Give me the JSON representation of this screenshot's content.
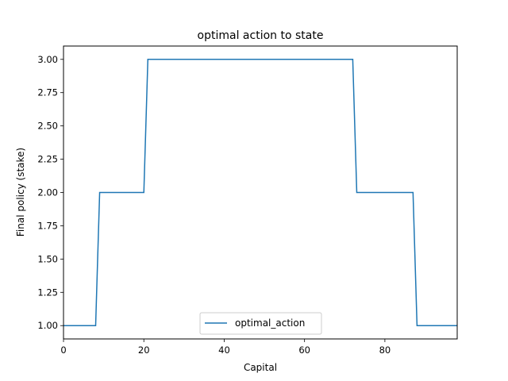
{
  "chart_data": {
    "type": "line",
    "title": "optimal action to state",
    "xlabel": "Capital",
    "ylabel": "Final policy (stake)",
    "xlim": [
      0,
      98
    ],
    "ylim": [
      0.9,
      3.1
    ],
    "xticks": [
      0,
      20,
      40,
      60,
      80
    ],
    "yticks": [
      1.0,
      1.25,
      1.5,
      1.75,
      2.0,
      2.25,
      2.5,
      2.75,
      3.0
    ],
    "xtick_labels": [
      "0",
      "20",
      "40",
      "60",
      "80"
    ],
    "ytick_labels": [
      "1.00",
      "1.25",
      "1.50",
      "1.75",
      "2.00",
      "2.25",
      "2.50",
      "2.75",
      "3.00"
    ],
    "grid": false,
    "legend_position": "bottom-center",
    "series": [
      {
        "name": "optimal_action",
        "color": "#1f77b4",
        "x": [
          0,
          8,
          9,
          20,
          21,
          72,
          73,
          87,
          88,
          98
        ],
        "y": [
          1,
          1,
          2,
          2,
          3,
          3,
          2,
          2,
          1,
          1
        ]
      }
    ]
  }
}
